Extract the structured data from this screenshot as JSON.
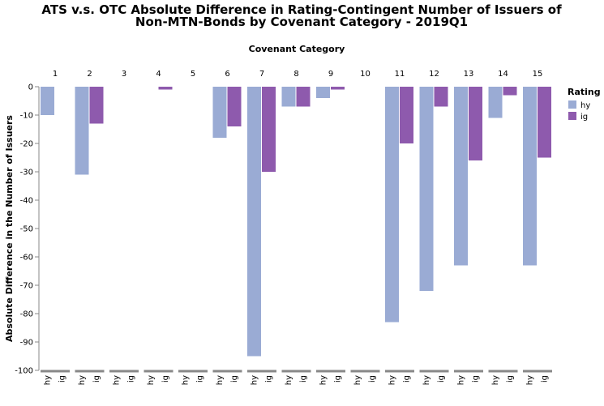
{
  "chart_data": {
    "type": "bar",
    "title": [
      "ATS v.s. OTC Absolute Difference in Rating-Contingent Number of Issuers of",
      "Non-MTN-Bonds by Covenant Category - 2019Q1"
    ],
    "facet_title": "Covenant Category",
    "y_title": "Absolute Difference in the Number of Issuers",
    "legend_title": "Rating",
    "categories": [
      "1",
      "2",
      "3",
      "4",
      "5",
      "6",
      "7",
      "8",
      "9",
      "10",
      "11",
      "12",
      "13",
      "14",
      "15"
    ],
    "series": [
      {
        "name": "hy",
        "color": "#9aabd4",
        "values": [
          -10,
          -31,
          0,
          0,
          0,
          -18,
          -95,
          -7,
          -4,
          0,
          -83,
          -72,
          -63,
          -11,
          -63
        ]
      },
      {
        "name": "ig",
        "color": "#8e5aad",
        "values": [
          0,
          -13,
          0,
          -1,
          0,
          -14,
          -30,
          -7,
          -1,
          0,
          -20,
          -7,
          -26,
          -3,
          -25
        ]
      }
    ],
    "ylim": [
      -100,
      0
    ],
    "yticks": [
      0,
      -10,
      -20,
      -30,
      -40,
      -50,
      -60,
      -70,
      -80,
      -90,
      -100
    ],
    "legend": "right"
  }
}
